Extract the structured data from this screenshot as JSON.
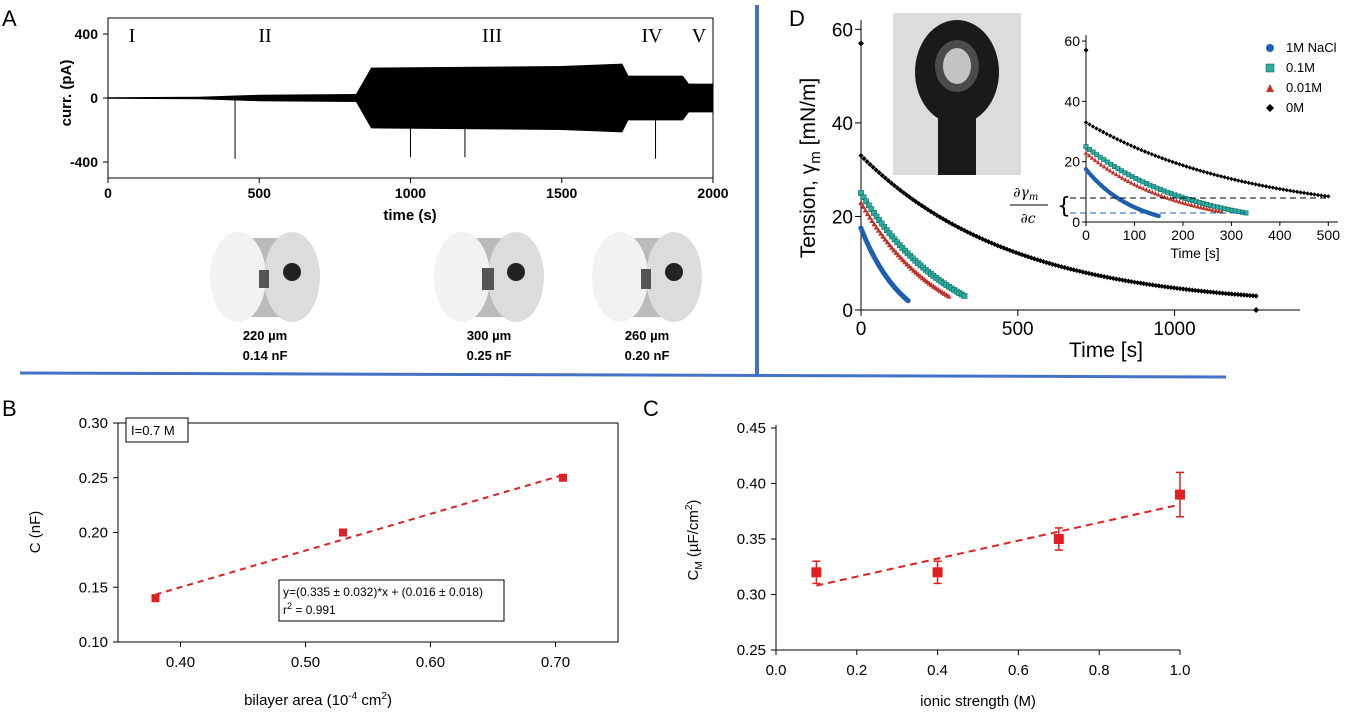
{
  "panel_labels": {
    "a": "A",
    "b": "B",
    "c": "C",
    "d": "D"
  },
  "colors": {
    "divider": "#4472c4",
    "red": "#e02020",
    "nacl": "#1f5fae",
    "m01": "#2aaea0",
    "m001": "#c0302a",
    "m0": "#000000"
  },
  "chart_data": [
    {
      "panel": "A",
      "type": "line",
      "ylabel": "curr. (pA)",
      "xlabel": "time (s)",
      "xlim": [
        0,
        2000
      ],
      "ylim": [
        -500,
        500
      ],
      "xticks": [
        "0",
        "500",
        "1000",
        "1500",
        "2000"
      ],
      "yticks": [
        "400",
        "0",
        "-400"
      ],
      "phases": [
        "I",
        "II",
        "III",
        "IV",
        "V"
      ],
      "envelope": [
        {
          "t": 0,
          "amp": 5
        },
        {
          "t": 300,
          "amp": 8
        },
        {
          "t": 500,
          "amp": 20
        },
        {
          "t": 820,
          "amp": 25
        },
        {
          "t": 870,
          "amp": 190
        },
        {
          "t": 1500,
          "amp": 200
        },
        {
          "t": 1700,
          "amp": 215
        },
        {
          "t": 1720,
          "amp": 140
        },
        {
          "t": 1900,
          "amp": 140
        },
        {
          "t": 1920,
          "amp": 90
        },
        {
          "t": 2000,
          "amp": 90
        }
      ],
      "spikes": [
        {
          "t": 420,
          "v": -380
        },
        {
          "t": 1000,
          "v": -370
        },
        {
          "t": 1180,
          "v": -370
        },
        {
          "t": 1810,
          "v": -380
        }
      ],
      "images": [
        {
          "size": "220 µm",
          "cap": "0.14 nF"
        },
        {
          "size": "300 µm",
          "cap": "0.25 nF"
        },
        {
          "size": "260 µm",
          "cap": "0.20 nF"
        }
      ]
    },
    {
      "panel": "B",
      "type": "scatter",
      "xlabel": "bilayer area (10",
      "xlabel_sup": "-4",
      "xlabel_mid": " cm",
      "xlabel_sup2": "2",
      "xlabel_end": ")",
      "ylabel": "C (nF)",
      "xlim": [
        0.35,
        0.75
      ],
      "ylim": [
        0.1,
        0.3
      ],
      "xticks": [
        "0.40",
        "0.50",
        "0.60",
        "0.70"
      ],
      "yticks": [
        "0.10",
        "0.15",
        "0.20",
        "0.25",
        "0.30"
      ],
      "annotation": "I=0.7 M",
      "fit_text": "y=(0.335 ± 0.032)*x + (0.016 ± 0.018)",
      "r2_text_a": "r",
      "r2_text_b": "2",
      "r2_text_c": " = 0.991",
      "points": [
        {
          "x": 0.38,
          "y": 0.14
        },
        {
          "x": 0.53,
          "y": 0.2
        },
        {
          "x": 0.706,
          "y": 0.25
        }
      ],
      "fit": {
        "slope": 0.335,
        "intercept": 0.016,
        "x": [
          0.38,
          0.706
        ]
      }
    },
    {
      "panel": "C",
      "type": "scatter",
      "xlabel": "ionic strength (M)",
      "ylabel_main": "C",
      "ylabel_sub": "M",
      "ylabel_rest": " (µF/cm",
      "ylabel_sup": "2",
      "ylabel_end": ")",
      "xlim": [
        0,
        1
      ],
      "ylim": [
        0.25,
        0.45
      ],
      "xticks": [
        "0.0",
        "0.2",
        "0.4",
        "0.6",
        "0.8",
        "1.0"
      ],
      "yticks": [
        "0.25",
        "0.30",
        "0.35",
        "0.40",
        "0.45"
      ],
      "points": [
        {
          "x": 0.1,
          "y": 0.32,
          "err": 0.01
        },
        {
          "x": 0.4,
          "y": 0.32,
          "err": 0.01
        },
        {
          "x": 0.7,
          "y": 0.35,
          "err": 0.01
        },
        {
          "x": 1.0,
          "y": 0.39,
          "err": 0.02
        }
      ],
      "fit_line": [
        {
          "x": 0.1,
          "y": 0.308
        },
        {
          "x": 1.0,
          "y": 0.381
        }
      ]
    },
    {
      "panel": "D",
      "type": "scatter",
      "xlabel": "Time [s]",
      "ylabel": "Tension, γ",
      "ylabel_sub": "m",
      "ylabel_unit": " [mN/m]",
      "xlim": [
        0,
        1400
      ],
      "ylim": [
        0,
        62
      ],
      "xticks": [
        "0",
        "500",
        "1000"
      ],
      "yticks": [
        "0",
        "20",
        "40",
        "60"
      ],
      "series": [
        {
          "name": "1M NaCl",
          "marker": "circle",
          "t0": 0,
          "t1": 150,
          "y0": 17.5,
          "y1": 2
        },
        {
          "name": "0.1M",
          "marker": "square",
          "t0": 0,
          "t1": 330,
          "y0": 25,
          "y1": 3
        },
        {
          "name": "0.01M",
          "marker": "triangle",
          "t0": 0,
          "t1": 280,
          "y0": 23,
          "y1": 3
        },
        {
          "name": "0M",
          "marker": "diamond",
          "t0": 0,
          "t1": 1260,
          "y0": 33,
          "y1": 3
        }
      ],
      "outliers": [
        {
          "x": 0,
          "y": 57
        },
        {
          "x": 1260,
          "y": 0
        }
      ],
      "inset": {
        "xlabel": "Time [s]",
        "xlim": [
          0,
          520
        ],
        "ylim": [
          0,
          62
        ],
        "xticks": [
          "0",
          "100",
          "200",
          "300",
          "400",
          "500"
        ],
        "yticks": [
          "0",
          "20",
          "40",
          "60"
        ],
        "derivative_label": "∂γm / ∂c"
      }
    }
  ]
}
